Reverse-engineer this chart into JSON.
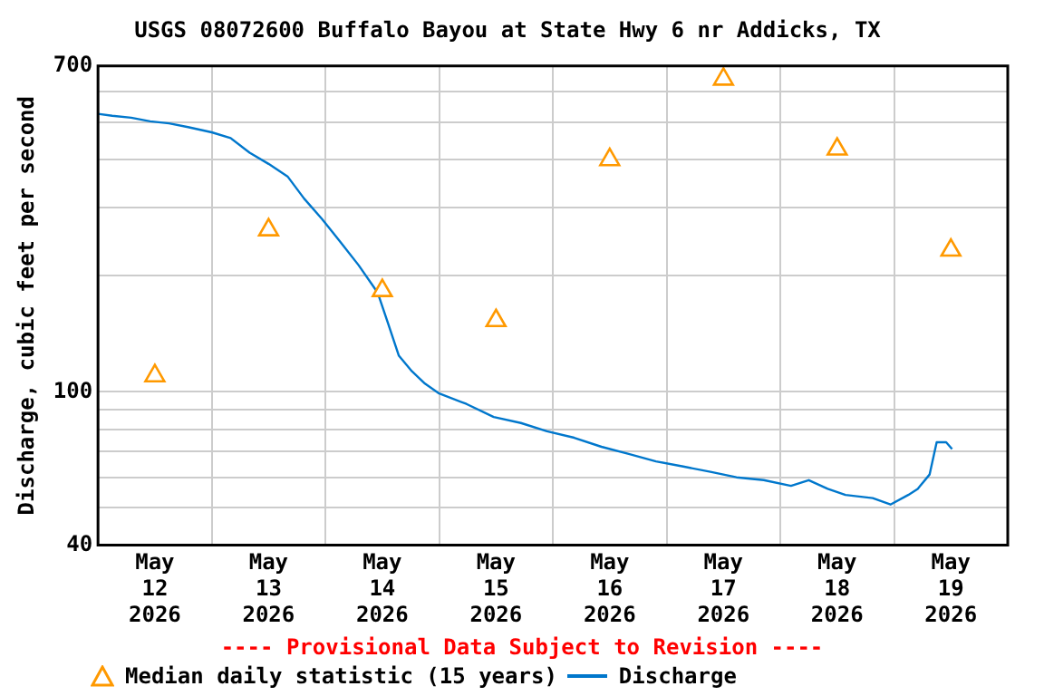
{
  "chart_data": {
    "type": "line",
    "title": "USGS 08072600 Buffalo Bayou at State Hwy 6 nr Addicks, TX",
    "ylabel": "Discharge, cubic feet per second",
    "log": "y",
    "grid": true,
    "legend": "bottom",
    "xlim": [
      "2026-05-12T00:00",
      "2026-05-20T00:00"
    ],
    "xticks": [
      {
        "value": "2026-05-12T12:00",
        "label": "May\n12\n2026"
      },
      {
        "value": "2026-05-13T00:00",
        "label": null
      },
      {
        "value": "2026-05-13T12:00",
        "label": "May\n13\n2026"
      },
      {
        "value": "2026-05-14T00:00",
        "label": null
      },
      {
        "value": "2026-05-14T12:00",
        "label": "May\n14\n2026"
      },
      {
        "value": "2026-05-15T00:00",
        "label": null
      },
      {
        "value": "2026-05-15T12:00",
        "label": "May\n15\n2026"
      },
      {
        "value": "2026-05-16T00:00",
        "label": null
      },
      {
        "value": "2026-05-16T12:00",
        "label": "May\n16\n2026"
      },
      {
        "value": "2026-05-17T00:00",
        "label": null
      },
      {
        "value": "2026-05-17T12:00",
        "label": "May\n17\n2026"
      },
      {
        "value": "2026-05-18T00:00",
        "label": null
      },
      {
        "value": "2026-05-18T12:00",
        "label": "May\n18\n2026"
      },
      {
        "value": "2026-05-19T00:00",
        "label": null
      },
      {
        "value": "2026-05-19T12:00",
        "label": "May\n19\n2026"
      }
    ],
    "ylim": [
      40,
      700
    ],
    "yticks": [
      40,
      {
        "value": 50,
        "label": null
      },
      {
        "value": 60,
        "label": null
      },
      {
        "value": 70,
        "label": null
      },
      {
        "value": 80,
        "label": null
      },
      {
        "value": 90,
        "label": null
      },
      100,
      {
        "value": 200,
        "label": null
      },
      {
        "value": 300,
        "label": null
      },
      {
        "value": 400,
        "label": null
      },
      {
        "value": 500,
        "label": null
      },
      {
        "value": 600,
        "label": null
      },
      700
    ],
    "annotations": [
      "---- Provisional Data Subject to Revision ----"
    ],
    "series": [
      {
        "name": "Median daily statistic (15 years)",
        "type": "scatter",
        "marker": "triangle",
        "color": "#ff9900",
        "x": [
          "2026-05-12T12:00",
          "2026-05-13T12:00",
          "2026-05-14T12:00",
          "2026-05-15T12:00",
          "2026-05-16T12:00",
          "2026-05-17T12:00",
          "2026-05-18T12:00",
          "2026-05-19T12:00"
        ],
        "values": [
          110,
          263,
          183,
          153,
          400,
          647,
          426,
          233
        ]
      },
      {
        "name": "Discharge",
        "type": "line",
        "marker": "none",
        "line_style": "solid",
        "color": "#0077cc",
        "x": [
          "2026-05-12T00:00",
          "2026-05-12T03:00",
          "2026-05-12T07:00",
          "2026-05-12T11:00",
          "2026-05-12T15:00",
          "2026-05-12T19:00",
          "2026-05-13T00:00",
          "2026-05-13T04:00",
          "2026-05-13T08:00",
          "2026-05-13T12:00",
          "2026-05-13T16:00",
          "2026-05-13T19:30",
          "2026-05-13T23:15",
          "2026-05-14T03:00",
          "2026-05-14T07:00",
          "2026-05-14T11:00",
          "2026-05-14T13:15",
          "2026-05-14T15:30",
          "2026-05-14T18:15",
          "2026-05-14T21:00",
          "2026-05-15T00:00",
          "2026-05-15T05:45",
          "2026-05-15T11:30",
          "2026-05-15T17:15",
          "2026-05-15T22:45",
          "2026-05-16T04:30",
          "2026-05-16T10:15",
          "2026-05-16T16:00",
          "2026-05-16T21:45",
          "2026-05-17T03:30",
          "2026-05-17T09:15",
          "2026-05-17T14:45",
          "2026-05-17T20:30",
          "2026-05-18T02:15",
          "2026-05-18T06:00",
          "2026-05-18T10:00",
          "2026-05-18T13:45",
          "2026-05-18T19:30",
          "2026-05-18T23:15",
          "2026-05-19T03:00",
          "2026-05-19T05:00",
          "2026-05-19T07:30",
          "2026-05-19T09:00",
          "2026-05-19T10:00",
          "2026-05-19T11:00",
          "2026-05-19T12:15"
        ],
        "values": [
          526,
          520,
          514,
          503,
          497,
          486,
          471,
          455,
          417,
          390,
          362,
          317,
          281,
          246,
          213,
          181,
          150,
          124,
          113,
          105,
          99,
          93,
          86,
          83,
          79,
          76,
          72,
          69,
          66,
          64,
          62,
          60,
          59,
          57,
          59,
          56,
          54,
          53,
          51,
          54,
          56,
          61,
          74,
          74,
          74,
          71
        ]
      }
    ]
  }
}
